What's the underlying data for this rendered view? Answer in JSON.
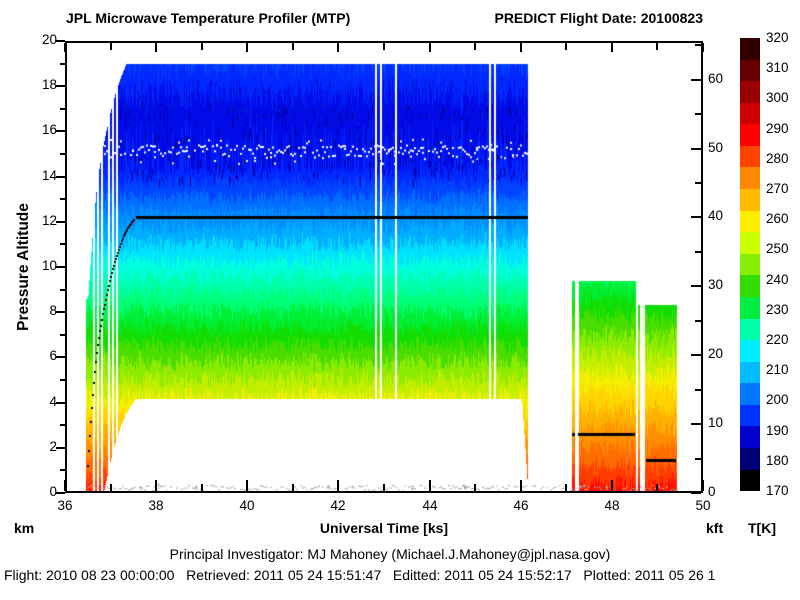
{
  "header": {
    "title_left": "JPL Microwave Temperature Profiler (MTP)",
    "title_right": "PREDICT  Flight Date: 20100823"
  },
  "footer": {
    "line1": "Principal Investigator: MJ Mahoney (Michael.J.Mahoney@jpl.nasa.gov)",
    "line2": "Flight: 2010 08 23 00:00:00   Retrieved: 2011 05 24 15:51:47   Editted: 2011 05 24 15:52:17   Plotted: 2011 05 26 1"
  },
  "chart_data": {
    "type": "heatmap",
    "title": "JPL Microwave Temperature Profiler (MTP) - PREDICT Flight Date: 20100823",
    "x_axis": {
      "label": "Universal Time [ks]",
      "lim": [
        36,
        50
      ],
      "major_ticks": [
        36,
        38,
        40,
        42,
        44,
        46,
        48,
        50
      ],
      "minor_step": 1
    },
    "y_axis_left": {
      "label": "Pressure Altitude",
      "unit": "km",
      "lim": [
        0,
        20
      ],
      "major_ticks": [
        0,
        2,
        4,
        6,
        8,
        10,
        12,
        14,
        16,
        18,
        20
      ],
      "minor_step": 1
    },
    "y_axis_right": {
      "unit": "kft",
      "major_ticks": [
        0,
        10,
        20,
        30,
        40,
        50,
        60
      ],
      "minor_step": 5,
      "km_per_kft": 0.3048
    },
    "colorbar": {
      "unit": "T[K]",
      "tick_labels": [
        320,
        310,
        300,
        290,
        280,
        270,
        260,
        250,
        240,
        230,
        220,
        210,
        200,
        190,
        180,
        170
      ],
      "segment_colors_top_to_bottom": [
        "#330000",
        "#660000",
        "#990000",
        "#cc0000",
        "#ff0000",
        "#ff4400",
        "#ff8800",
        "#ffbb00",
        "#ffee00",
        "#ccff00",
        "#88ee00",
        "#33dd00",
        "#00ee44",
        "#00ffaa",
        "#00eeff",
        "#00bbff",
        "#0077ff",
        "#0033ff",
        "#0000cc",
        "#000077",
        "#000000"
      ]
    },
    "palette_stops": [
      [
        170,
        "#000000"
      ],
      [
        178,
        "#000055"
      ],
      [
        186,
        "#000099"
      ],
      [
        193,
        "#0000dd"
      ],
      [
        199,
        "#0022ff"
      ],
      [
        205,
        "#0044ff"
      ],
      [
        211,
        "#0077ff"
      ],
      [
        217,
        "#0099ff"
      ],
      [
        222,
        "#00bbff"
      ],
      [
        226,
        "#00eeff"
      ],
      [
        230,
        "#00ffdd"
      ],
      [
        235,
        "#00ffaa"
      ],
      [
        240,
        "#00ff77"
      ],
      [
        245,
        "#00ee33"
      ],
      [
        250,
        "#11dd00"
      ],
      [
        256,
        "#55dd00"
      ],
      [
        261,
        "#99ee00"
      ],
      [
        266,
        "#ccee00"
      ],
      [
        271,
        "#ffee00"
      ],
      [
        276,
        "#ffcc00"
      ],
      [
        281,
        "#ffaa00"
      ],
      [
        286,
        "#ff8800"
      ],
      [
        291,
        "#ff6600"
      ],
      [
        296,
        "#ff3300"
      ],
      [
        301,
        "#ff0000"
      ],
      [
        307,
        "#dd0000"
      ],
      [
        313,
        "#990000"
      ],
      [
        320,
        "#440000"
      ]
    ],
    "band_step_K": 5,
    "temp_profile_main_km_K": [
      [
        0,
        299
      ],
      [
        4.2,
        268.5
      ],
      [
        12.2,
        215
      ],
      [
        14.4,
        197.5
      ],
      [
        16.9,
        194.5
      ],
      [
        19,
        202.5
      ]
    ],
    "temp_profile_descent_km_K": [
      [
        0,
        300
      ],
      [
        9.5,
        242.5
      ]
    ],
    "segments": [
      {
        "name": "main-flight",
        "t_range": [
          36.44,
          46.15
        ],
        "top_km": 19,
        "bottom_cruise_km": 4.2,
        "climb_end_t": 37.55,
        "end_descent_t": 46.02,
        "end_bottom_km": 0.3
      },
      {
        "name": "descent-leg-1",
        "slivers": [
          [
            47.12,
            47.18
          ]
        ],
        "body": [
          47.26,
          48.52
        ],
        "top_km": 9.4,
        "bottom_km": 0
      },
      {
        "name": "descent-leg-2",
        "slivers": [
          [
            48.56,
            48.61
          ]
        ],
        "body": [
          48.72,
          49.42
        ],
        "top_km": 8.3,
        "bottom_km": 0
      }
    ],
    "data_gap_times_ks": [
      36.62,
      36.7,
      36.78,
      36.94,
      37.03,
      37.12,
      42.81,
      42.92,
      43.25,
      45.3,
      45.41
    ],
    "flight_track_km": {
      "climb": [
        [
          36.5,
          1.2
        ],
        [
          36.56,
          3.0
        ],
        [
          36.62,
          4.6
        ],
        [
          36.68,
          5.9
        ],
        [
          36.75,
          7.0
        ],
        [
          36.83,
          7.9
        ],
        [
          36.92,
          8.8
        ],
        [
          37.02,
          9.7
        ],
        [
          37.12,
          10.4
        ],
        [
          37.22,
          11.0
        ],
        [
          37.32,
          11.5
        ],
        [
          37.42,
          11.85
        ],
        [
          37.55,
          12.2
        ]
      ],
      "cruise": {
        "t_range": [
          37.55,
          46.15
        ],
        "alt_km": 12.2
      },
      "leg1": {
        "t_ranges": [
          [
            47.12,
            47.18
          ],
          [
            47.26,
            48.52
          ]
        ],
        "alt_km": 2.62
      },
      "leg2": {
        "t_ranges": [
          [
            48.74,
            49.4
          ]
        ],
        "alt_km": 1.44
      }
    },
    "tropopause_trace": {
      "t_range": [
        36.85,
        46.15
      ],
      "alt_km": 15.15,
      "jitter_km": 0.28,
      "color": "#ffffff"
    },
    "surface_trace": {
      "t_range": [
        36.5,
        49.42
      ],
      "alt_km": 0.15,
      "color": "#aaaaaa"
    },
    "flight_track_color": "#000000"
  }
}
